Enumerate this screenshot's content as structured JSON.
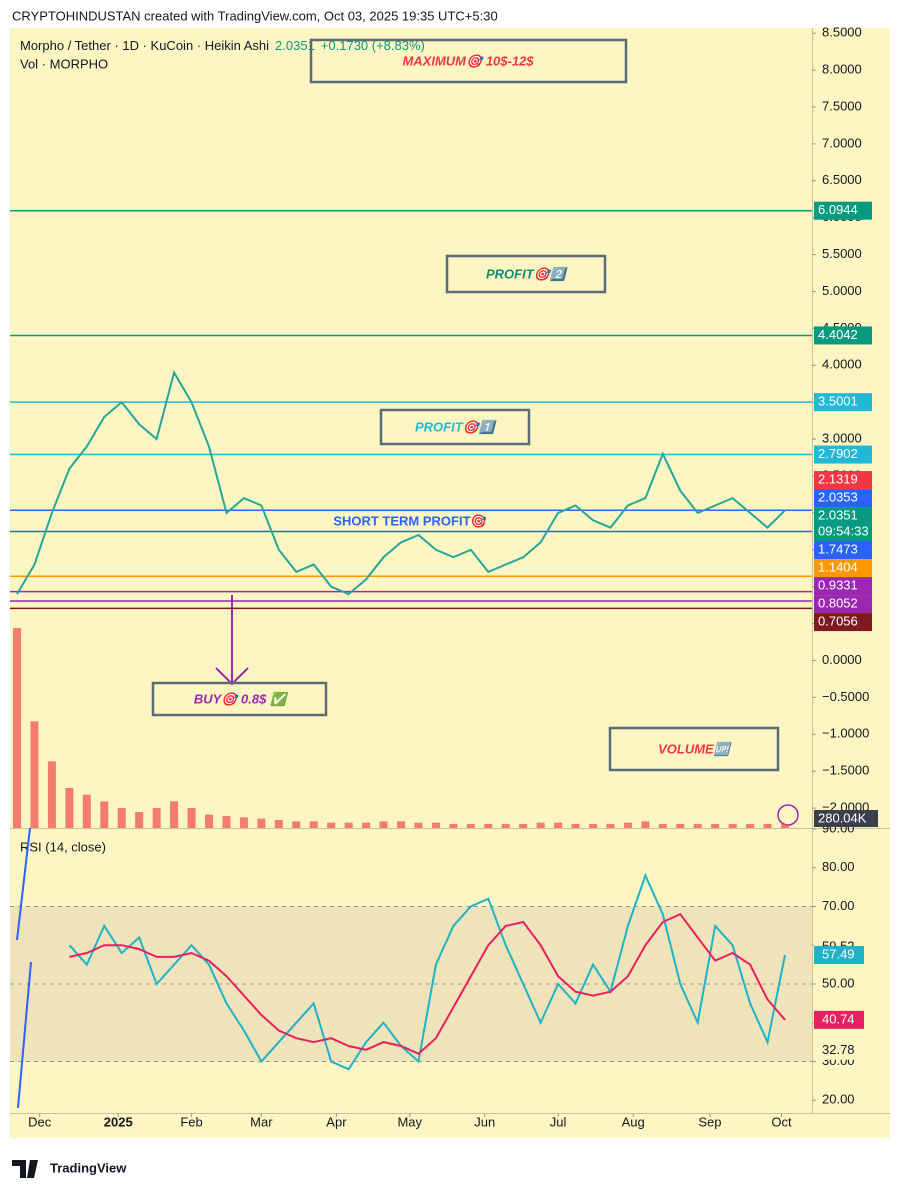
{
  "header": {
    "credit": "CRYPTOHINDUSTAN created with TradingView.com, Oct 03, 2025 19:35 UTC+5:30",
    "symbol": "Morpho / Tether · 1D · KuCoin · Heikin Ashi",
    "last": 2.0351,
    "change": "+0.1730 (+8.83%)",
    "volume_title": "Vol · MORPHO",
    "logo": "TradingView"
  },
  "chart_data": [
    {
      "type": "line",
      "color": "#26a69a",
      "values": [
        0.9,
        1.3,
        2.0,
        2.6,
        2.9,
        3.3,
        3.5,
        3.2,
        3.0,
        3.9,
        3.5,
        2.9,
        2.0,
        2.2,
        2.1,
        1.5,
        1.2,
        1.3,
        1.0,
        0.9,
        1.1,
        1.4,
        1.6,
        1.7,
        1.5,
        1.4,
        1.5,
        1.2,
        1.3,
        1.4,
        1.6,
        2.0,
        2.1,
        1.9,
        1.8,
        2.1,
        2.2,
        2.8,
        2.3,
        2.0,
        2.1,
        2.2,
        2.0,
        1.8,
        2.0351
      ],
      "volume": [
        15000,
        8000,
        5000,
        3000,
        2500,
        2000,
        1500,
        1200,
        1500,
        2000,
        1500,
        1000,
        900,
        800,
        700,
        600,
        500,
        500,
        400,
        400,
        400,
        500,
        500,
        400,
        400,
        300,
        300,
        300,
        300,
        300,
        400,
        400,
        300,
        300,
        300,
        400,
        500,
        300,
        300,
        300,
        300,
        300,
        300,
        300,
        280.04
      ],
      "volume_color": "#ef5350",
      "volume_ylim": [
        0,
        16500
      ],
      "volume_label": "280.04K",
      "ylim": [
        -2.27,
        8.57
      ],
      "yticks": [
        {
          "value": 8.5,
          "label": "8.5000"
        },
        {
          "value": 8,
          "label": "8.0000"
        },
        {
          "value": 7.5,
          "label": "7.5000"
        },
        {
          "value": 7,
          "label": "7.0000"
        },
        {
          "value": 6.5,
          "label": "6.5000"
        },
        {
          "value": 6,
          "label": "6.0000"
        },
        {
          "value": 5.5,
          "label": "5.5000"
        },
        {
          "value": 5,
          "label": "5.0000"
        },
        {
          "value": 4.5,
          "label": "4.5000"
        },
        {
          "value": 4,
          "label": "4.0000"
        },
        {
          "value": 3.5,
          "label": "3.5000"
        },
        {
          "value": 3,
          "label": "3.0000"
        },
        {
          "value": 2.5,
          "label": "2.5000"
        },
        {
          "value": 2,
          "label": "2.0000"
        },
        {
          "value": 1.5,
          "label": "1.5000"
        },
        {
          "value": 1,
          "label": "1.0000"
        },
        {
          "value": 0.5,
          "label": "0.5000"
        },
        {
          "value": 0,
          "label": "0.0000"
        },
        {
          "value": -0.5,
          "label": "−0.5000"
        },
        {
          "value": -1,
          "label": "−1.0000"
        },
        {
          "value": -1.5,
          "label": "−1.5000"
        },
        {
          "value": -2,
          "label": "−2.0000"
        }
      ],
      "levels": [
        {
          "value": 6.0944,
          "label": "6.0944",
          "color": "#089981",
          "line": true
        },
        {
          "value": 4.4042,
          "label": "4.4042",
          "color": "#089981",
          "line": true
        },
        {
          "value": 3.5001,
          "label": "3.5001",
          "color": "#22b8d8",
          "line": true
        },
        {
          "value": 2.7902,
          "label": "2.7902",
          "color": "#22b8d8",
          "line": true
        },
        {
          "value": 2.1319,
          "label": "2.1319",
          "color": "#f23645",
          "line": false
        },
        {
          "value": 2.0353,
          "label": "2.0353",
          "color": "#2962ff",
          "line": true
        },
        {
          "value": 2.0351,
          "label": "2.0351",
          "color": "#089981",
          "line": false,
          "countdown": "09:54:33"
        },
        {
          "value": 1.7473,
          "label": "1.7473",
          "color": "#2962ff",
          "line": true
        },
        {
          "value": 1.1404,
          "label": "1.1404",
          "color": "#ff9800",
          "line": true
        },
        {
          "value": 0.9331,
          "label": "0.9331",
          "color": "#9c27b0",
          "line": true
        },
        {
          "value": 0.8052,
          "label": "0.8052",
          "color": "#9c27b0",
          "line": true
        },
        {
          "value": 0.7056,
          "label": "0.7056",
          "color": "#801922",
          "line": true
        }
      ],
      "annotations": {
        "maximum": "MAXIMUM🎯 10$-12$",
        "profit2": "PROFIT🎯2️⃣",
        "profit1": "PROFIT🎯1️⃣",
        "short_term": "SHORT TERM PROFIT🎯",
        "buy": "BUY🎯 0.8$ ✅",
        "volume": "VOLUME🆙"
      },
      "xticks": [
        {
          "value": 1.3,
          "label": "Dec"
        },
        {
          "value": 5.8,
          "label": "2025"
        },
        {
          "value": 10.0,
          "label": "Feb"
        },
        {
          "value": 14.0,
          "label": "Mar"
        },
        {
          "value": 18.3,
          "label": "Apr"
        },
        {
          "value": 22.5,
          "label": "May"
        },
        {
          "value": 26.8,
          "label": "Jun"
        },
        {
          "value": 31.0,
          "label": "Jul"
        },
        {
          "value": 35.3,
          "label": "Aug"
        },
        {
          "value": 39.7,
          "label": "Sep"
        },
        {
          "value": 43.8,
          "label": "Oct"
        }
      ]
    },
    {
      "type": "line",
      "title": "RSI (14, close)",
      "series": [
        {
          "color": "#1fb2c9",
          "values": [
            null,
            null,
            null,
            60,
            55,
            65,
            58,
            62,
            50,
            55,
            60,
            55,
            45,
            38,
            30,
            35,
            40,
            45,
            30,
            28,
            35,
            40,
            34,
            30,
            55,
            65,
            70,
            72,
            60,
            50,
            40,
            50,
            45,
            55,
            48,
            65,
            78,
            68,
            50,
            40,
            65,
            60,
            45,
            35,
            57.49
          ]
        },
        {
          "color": "#e91e63",
          "values": [
            null,
            null,
            null,
            57,
            58,
            60,
            60,
            59,
            57,
            57,
            58,
            56,
            52,
            47,
            42,
            38,
            36,
            35,
            36,
            34,
            33,
            35,
            34,
            32,
            36,
            44,
            52,
            60,
            65,
            66,
            60,
            52,
            48,
            47,
            48,
            52,
            60,
            66,
            68,
            62,
            56,
            58,
            55,
            46,
            40.74
          ]
        }
      ],
      "extra_labels": [
        59.52,
        32.78
      ],
      "band": [
        30,
        70
      ],
      "midline": 50,
      "ylim": [
        16.7,
        90
      ],
      "yticks": [
        {
          "value": 90,
          "label": "90.00"
        },
        {
          "value": 80,
          "label": "80.00"
        },
        {
          "value": 70,
          "label": "70.00"
        },
        {
          "value": 60,
          "label": "60.00"
        },
        {
          "value": 50,
          "label": "50.00"
        },
        {
          "value": 40,
          "label": "40.00"
        },
        {
          "value": 30,
          "label": "30.00"
        },
        {
          "value": 20,
          "label": "20.00"
        }
      ]
    }
  ]
}
